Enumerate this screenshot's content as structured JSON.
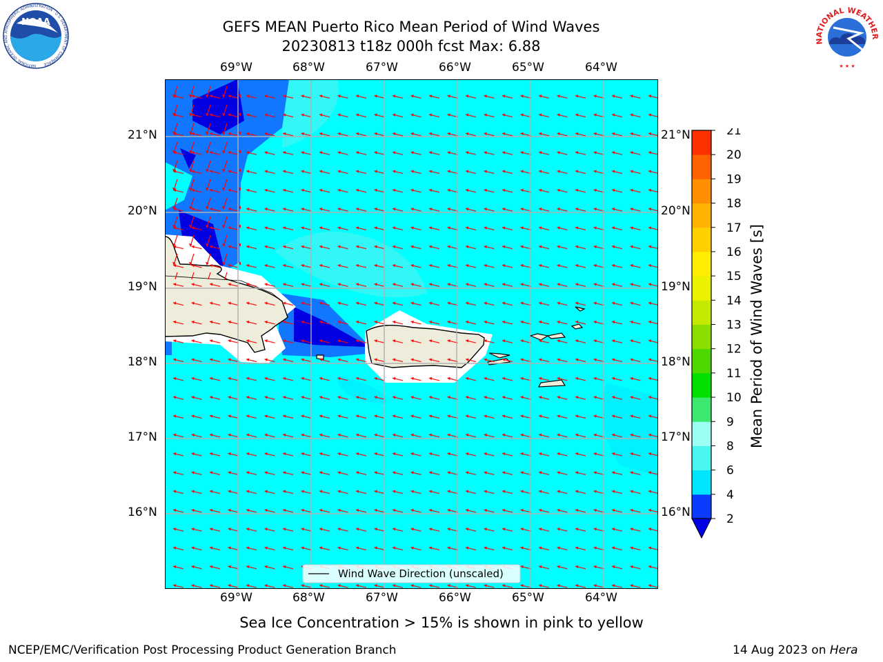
{
  "title": {
    "line1": "GEFS MEAN Puerto Rico Mean Period of Wind Waves",
    "line2": "20230813 t18z 000h fcst   Max: 6.88"
  },
  "logos": {
    "left": "NOAA",
    "left_ring": "NATIONAL OCEANIC AND ATMOSPHERIC ADMINISTRATION · U.S. DEPARTMENT OF COMMERCE",
    "right_ring": "NATIONAL WEATHER SERVICE"
  },
  "lon_labels": [
    "69°W",
    "68°W",
    "67°W",
    "66°W",
    "65°W",
    "64°W"
  ],
  "lat_labels": [
    "21°N",
    "20°N",
    "19°N",
    "18°N",
    "17°N",
    "16°N"
  ],
  "legend": {
    "label": "Wind Wave Direction (unscaled)"
  },
  "colorbar": {
    "label": "Mean Period of Wind Waves [s]",
    "ticks": [
      "2",
      "4",
      "6",
      "8",
      "9",
      "10",
      "11",
      "12",
      "13",
      "14",
      "15",
      "16",
      "17",
      "18",
      "19",
      "20",
      "21"
    ],
    "colors": [
      "#0a3bff",
      "#00e5ff",
      "#48f5ef",
      "#9dfff4",
      "#3de870",
      "#00e000",
      "#4cd800",
      "#8bdd00",
      "#c3ea00",
      "#ecf100",
      "#ffee00",
      "#ffd000",
      "#ffb200",
      "#ff8f00",
      "#ff6200",
      "#ff3000"
    ],
    "extend_color": "#0000e8"
  },
  "note": "Sea Ice Concentration > 15% is shown in pink to yellow",
  "footer": {
    "left": "NCEP/EMC/Verification Post Processing Product Generation Branch",
    "right_prefix": "14 Aug 2023 on ",
    "right_machine": "Hera"
  },
  "map_colors": {
    "ocean": "#00ffff",
    "dark": "#0000e0",
    "mid": "#1177ff",
    "land": "#eeeddc",
    "arrow": "#ff0000"
  }
}
